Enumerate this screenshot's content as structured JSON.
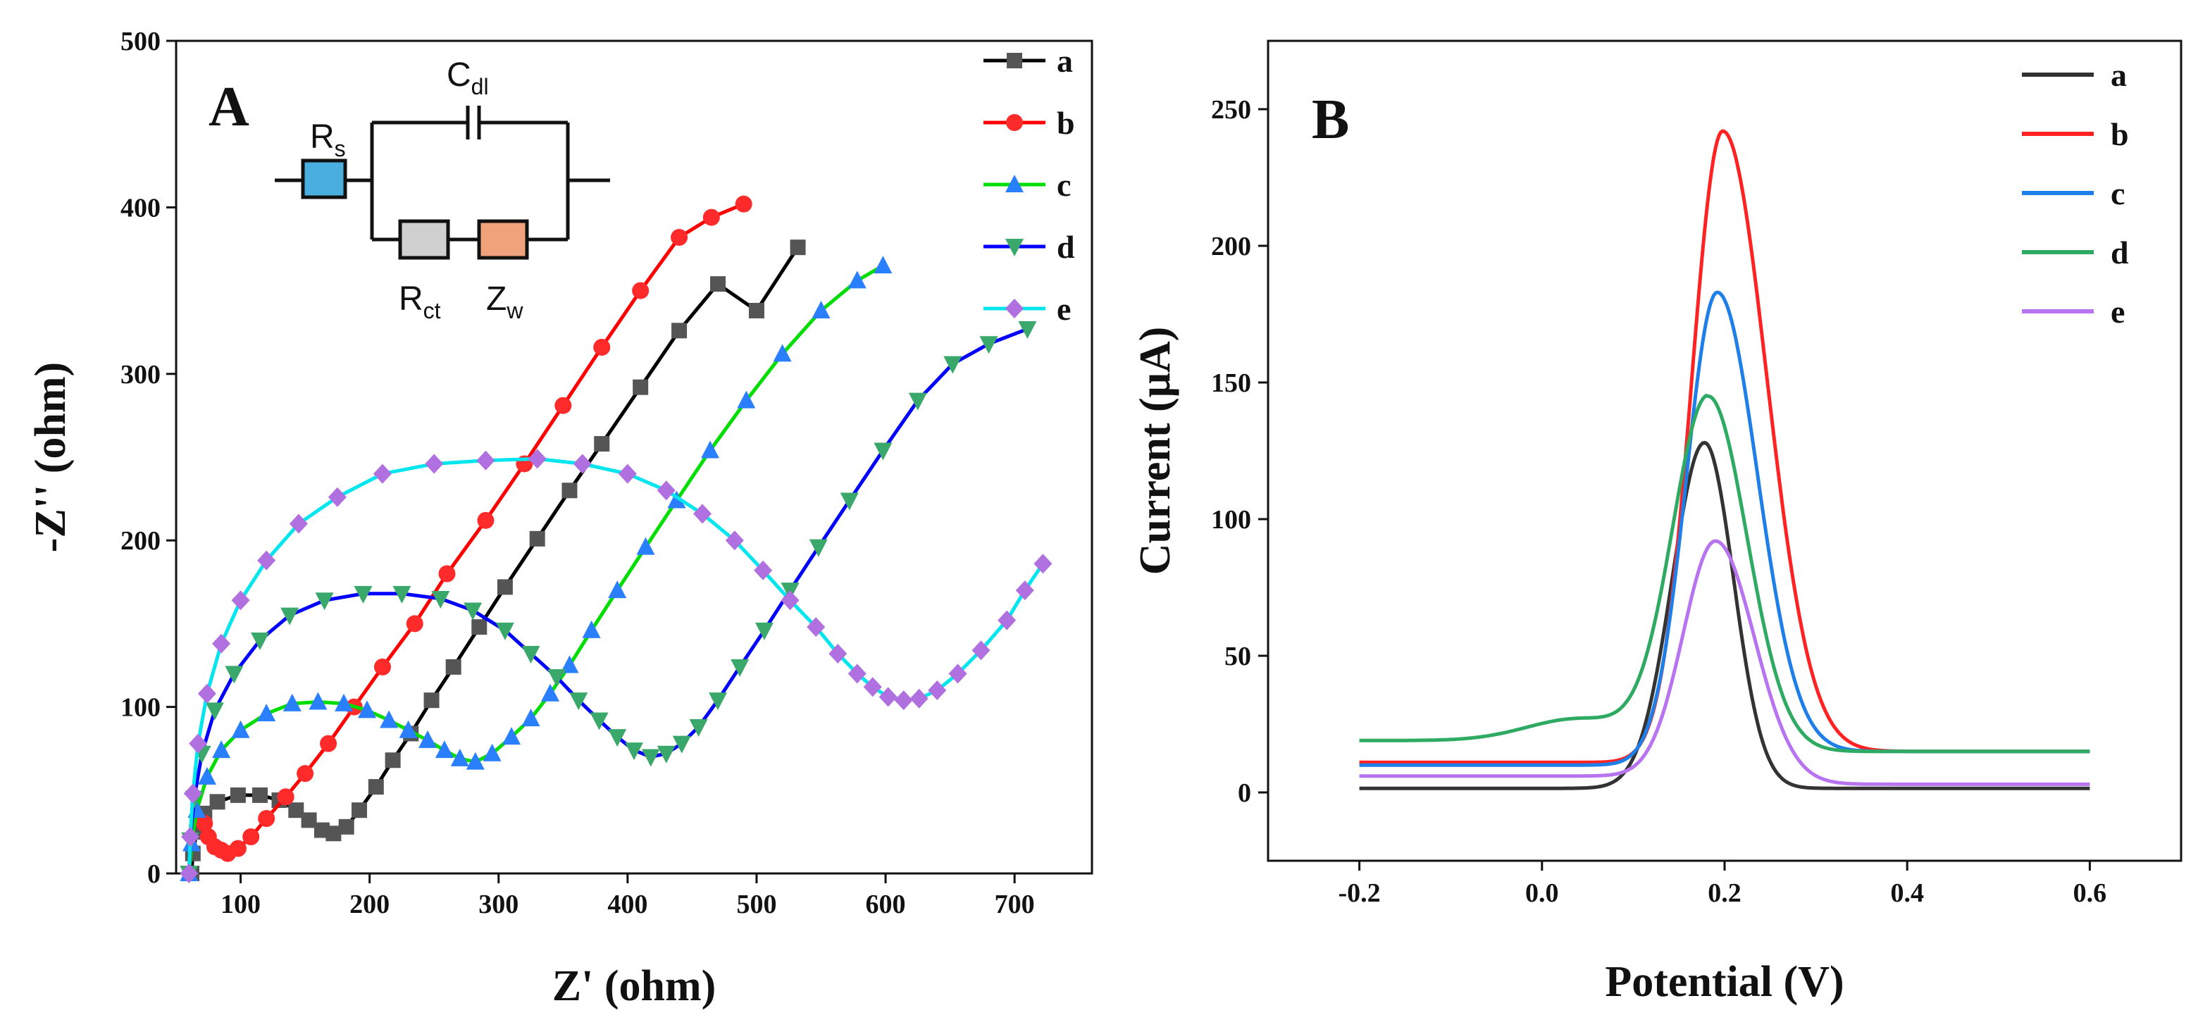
{
  "figure": {
    "panel_a_label": "A",
    "panel_b_label": "B"
  },
  "circuit": {
    "rs_main": "R",
    "rs_sub": "s",
    "cdl_main": "C",
    "cdl_sub": "dl",
    "rct_main": "R",
    "rct_sub": "ct",
    "zw_main": "Z",
    "zw_sub": "w",
    "colors": {
      "rs": "#4aaee0",
      "rct": "#d0d0d0",
      "zw": "#f0a37a"
    }
  },
  "chart_data": [
    {
      "type": "scatter",
      "title": "",
      "xlabel": "Z' (ohm)",
      "ylabel": "-Z'' (ohm)",
      "xlim": [
        50,
        760
      ],
      "ylim": [
        0,
        500
      ],
      "xticks": [
        "100",
        "200",
        "300",
        "400",
        "500",
        "600",
        "700"
      ],
      "yticks": [
        "0",
        "100",
        "200",
        "300",
        "400",
        "500"
      ],
      "legend_position": "top-right",
      "series": [
        {
          "name": "a",
          "color": "#000000",
          "marker": "square",
          "markerColor": "#555555",
          "points": [
            [
              62,
              0
            ],
            [
              63,
              12
            ],
            [
              66,
              25
            ],
            [
              72,
              36
            ],
            [
              82,
              43
            ],
            [
              98,
              47
            ],
            [
              115,
              47
            ],
            [
              130,
              44
            ],
            [
              143,
              38
            ],
            [
              153,
              32
            ],
            [
              163,
              26
            ],
            [
              172,
              24
            ],
            [
              182,
              28
            ],
            [
              192,
              38
            ],
            [
              205,
              52
            ],
            [
              218,
              68
            ],
            [
              232,
              84
            ],
            [
              248,
              104
            ],
            [
              265,
              124
            ],
            [
              285,
              148
            ],
            [
              305,
              172
            ],
            [
              330,
              201
            ],
            [
              355,
              230
            ],
            [
              380,
              258
            ],
            [
              410,
              292
            ],
            [
              440,
              326
            ],
            [
              470,
              354
            ],
            [
              500,
              338
            ],
            [
              532,
              376
            ]
          ]
        },
        {
          "name": "b",
          "color": "#ff0000",
          "marker": "circle",
          "markerColor": "#ff2a2a",
          "points": [
            [
              72,
              30
            ],
            [
              75,
              22
            ],
            [
              80,
              16
            ],
            [
              85,
              14
            ],
            [
              90,
              12
            ],
            [
              98,
              15
            ],
            [
              108,
              22
            ],
            [
              120,
              33
            ],
            [
              135,
              46
            ],
            [
              150,
              60
            ],
            [
              168,
              78
            ],
            [
              188,
              100
            ],
            [
              210,
              124
            ],
            [
              235,
              150
            ],
            [
              260,
              180
            ],
            [
              290,
              212
            ],
            [
              320,
              246
            ],
            [
              350,
              281
            ],
            [
              380,
              316
            ],
            [
              410,
              350
            ],
            [
              440,
              382
            ],
            [
              465,
              394
            ],
            [
              490,
              402
            ]
          ]
        },
        {
          "name": "c",
          "color": "#00dd00",
          "marker": "triangle-up",
          "markerColor": "#2a7fff",
          "points": [
            [
              60,
              0
            ],
            [
              62,
              18
            ],
            [
              66,
              38
            ],
            [
              74,
              58
            ],
            [
              85,
              74
            ],
            [
              100,
              86
            ],
            [
              120,
              96
            ],
            [
              140,
              102
            ],
            [
              160,
              103
            ],
            [
              180,
              102
            ],
            [
              198,
              98
            ],
            [
              215,
              92
            ],
            [
              230,
              86
            ],
            [
              245,
              80
            ],
            [
              258,
              74
            ],
            [
              270,
              69
            ],
            [
              282,
              67
            ],
            [
              295,
              72
            ],
            [
              310,
              82
            ],
            [
              325,
              93
            ],
            [
              340,
              108
            ],
            [
              355,
              125
            ],
            [
              372,
              146
            ],
            [
              392,
              170
            ],
            [
              414,
              196
            ],
            [
              438,
              224
            ],
            [
              464,
              254
            ],
            [
              492,
              284
            ],
            [
              520,
              312
            ],
            [
              550,
              338
            ],
            [
              578,
              356
            ],
            [
              598,
              365
            ]
          ]
        },
        {
          "name": "d",
          "color": "#0000ff",
          "marker": "triangle-down",
          "markerColor": "#3aa86a",
          "points": [
            [
              60,
              0
            ],
            [
              61,
              20
            ],
            [
              64,
              45
            ],
            [
              70,
              72
            ],
            [
              80,
              98
            ],
            [
              95,
              120
            ],
            [
              115,
              140
            ],
            [
              138,
              155
            ],
            [
              165,
              164
            ],
            [
              195,
              168
            ],
            [
              225,
              168
            ],
            [
              255,
              165
            ],
            [
              280,
              158
            ],
            [
              305,
              146
            ],
            [
              325,
              132
            ],
            [
              345,
              118
            ],
            [
              362,
              104
            ],
            [
              378,
              92
            ],
            [
              392,
              82
            ],
            [
              405,
              74
            ],
            [
              418,
              70
            ],
            [
              430,
              72
            ],
            [
              442,
              78
            ],
            [
              455,
              88
            ],
            [
              470,
              104
            ],
            [
              487,
              124
            ],
            [
              506,
              146
            ],
            [
              526,
              170
            ],
            [
              548,
              196
            ],
            [
              572,
              224
            ],
            [
              598,
              254
            ],
            [
              625,
              284
            ],
            [
              652,
              306
            ],
            [
              680,
              318
            ],
            [
              710,
              327
            ]
          ]
        },
        {
          "name": "e",
          "color": "#00e5ee",
          "marker": "diamond",
          "markerColor": "#b070e0",
          "points": [
            [
              60,
              0
            ],
            [
              61,
              22
            ],
            [
              63,
              48
            ],
            [
              67,
              78
            ],
            [
              74,
              108
            ],
            [
              85,
              138
            ],
            [
              100,
              164
            ],
            [
              120,
              188
            ],
            [
              145,
              210
            ],
            [
              175,
              226
            ],
            [
              210,
              240
            ],
            [
              250,
              246
            ],
            [
              290,
              248
            ],
            [
              330,
              249
            ],
            [
              365,
              246
            ],
            [
              400,
              240
            ],
            [
              430,
              230
            ],
            [
              458,
              216
            ],
            [
              483,
              200
            ],
            [
              505,
              182
            ],
            [
              526,
              164
            ],
            [
              546,
              148
            ],
            [
              563,
              132
            ],
            [
              578,
              120
            ],
            [
              590,
              112
            ],
            [
              602,
              106
            ],
            [
              614,
              104
            ],
            [
              626,
              105
            ],
            [
              640,
              110
            ],
            [
              656,
              120
            ],
            [
              674,
              134
            ],
            [
              694,
              152
            ],
            [
              708,
              170
            ],
            [
              722,
              186
            ]
          ]
        }
      ]
    },
    {
      "type": "line",
      "title": "",
      "xlabel": "Potential (V)",
      "ylabel": "Current (μA)",
      "xlim": [
        -0.3,
        0.7
      ],
      "ylim": [
        -25,
        275
      ],
      "xticks": [
        "-0.2",
        "0.0",
        "0.2",
        "0.4",
        "0.6"
      ],
      "yticks": [
        "0",
        "50",
        "100",
        "150",
        "200",
        "250"
      ],
      "legend_position": "top-right",
      "series": [
        {
          "name": "a",
          "color": "#333333",
          "peak_x": 0.178,
          "peak": 128,
          "baseline_left": 1.5,
          "baseline_right": 1.5,
          "width_left": 0.05,
          "width_right": 0.045
        },
        {
          "name": "b",
          "color": "#ff2222",
          "peak_x": 0.198,
          "peak": 242,
          "baseline_left": 11,
          "baseline_right": 15,
          "width_left": 0.048,
          "width_right": 0.068
        },
        {
          "name": "c",
          "color": "#1e7fe8",
          "peak_x": 0.192,
          "peak": 183,
          "baseline_left": 10,
          "baseline_right": 15,
          "width_left": 0.048,
          "width_right": 0.062
        },
        {
          "name": "d",
          "color": "#2eaa62",
          "peak_x": 0.182,
          "peak": 145,
          "baseline_left": 19,
          "baseline_right": 15,
          "width_left": 0.055,
          "width_right": 0.06
        },
        {
          "name": "e",
          "color": "#b873f0",
          "peak_x": 0.19,
          "peak": 92,
          "baseline_left": 6,
          "baseline_right": 3,
          "width_left": 0.05,
          "width_right": 0.06
        }
      ]
    }
  ]
}
